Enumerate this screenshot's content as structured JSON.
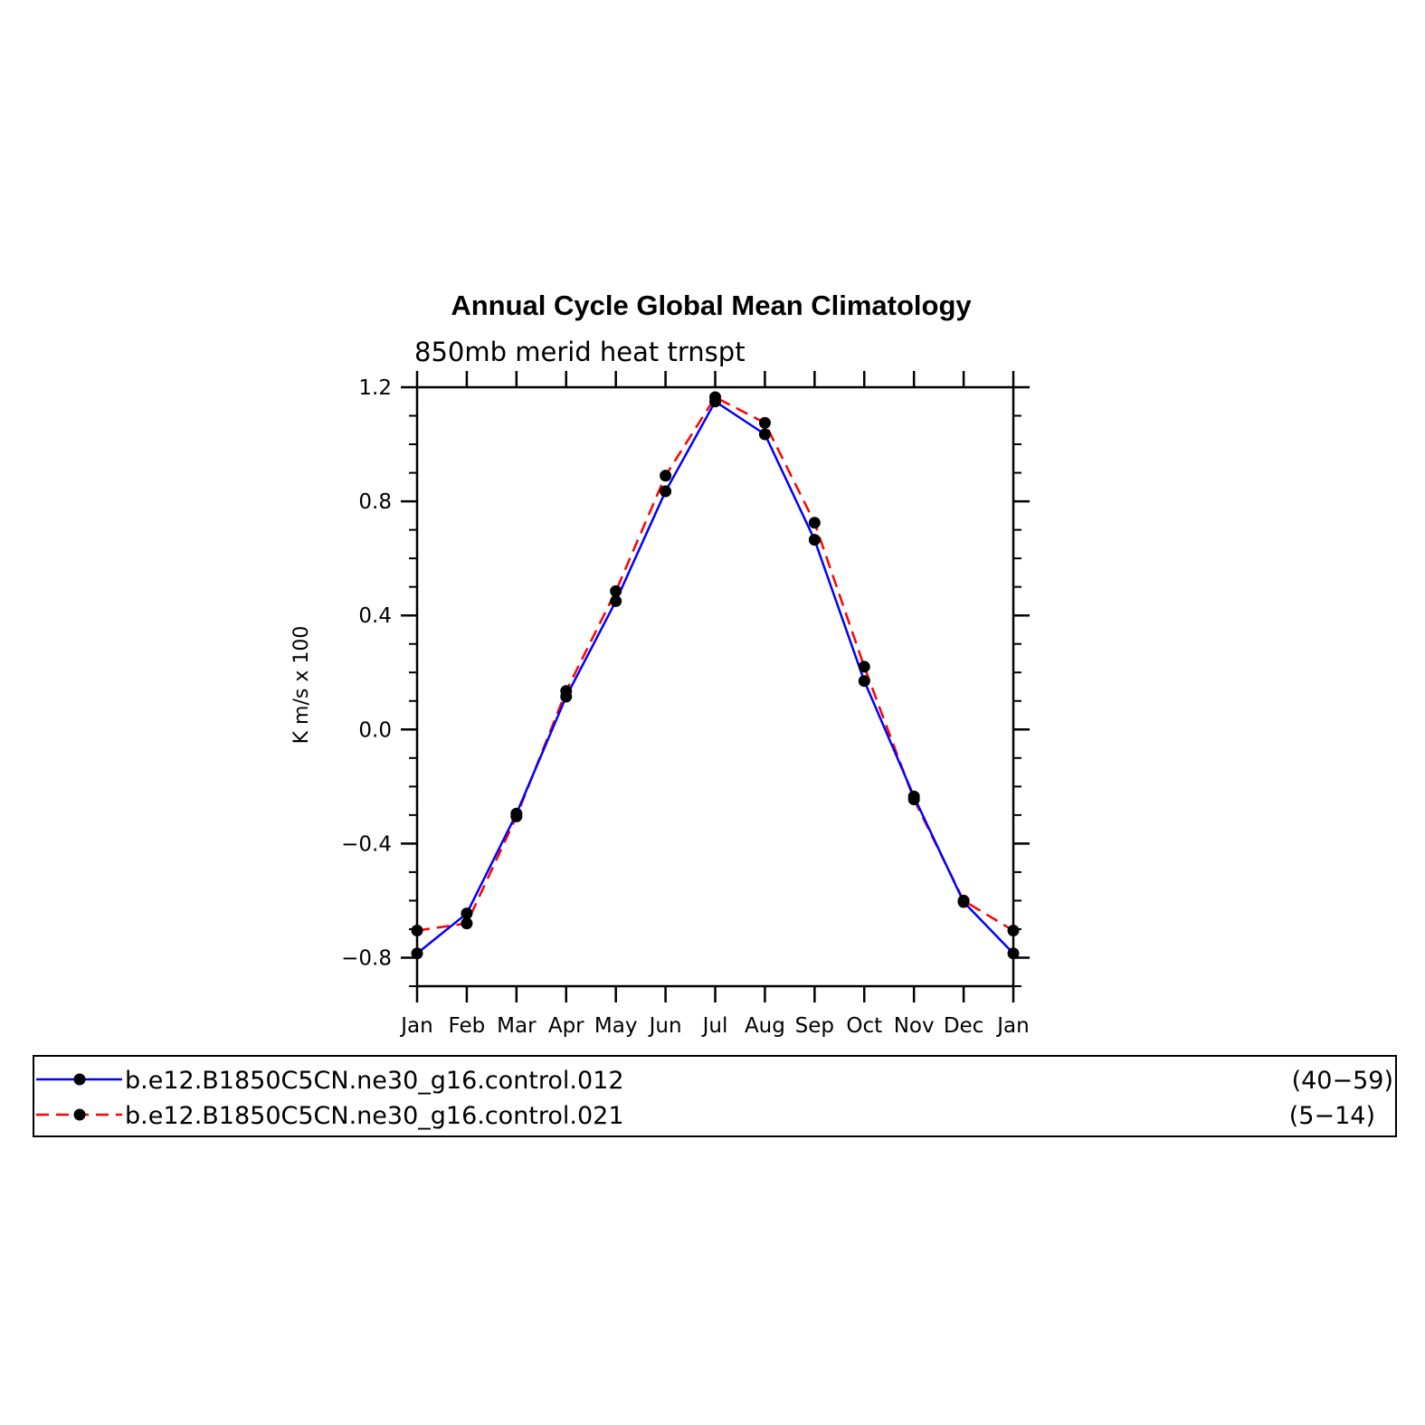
{
  "chart_data": {
    "type": "line",
    "title": "Annual Cycle Global Mean Climatology",
    "subtitle": "850mb merid heat trnspt",
    "ylabel": "K m/s x 100",
    "xlabel": "",
    "categories": [
      "Jan",
      "Feb",
      "Mar",
      "Apr",
      "May",
      "Jun",
      "Jul",
      "Aug",
      "Sep",
      "Oct",
      "Nov",
      "Dec",
      "Jan"
    ],
    "ylim": [
      -0.9,
      1.2
    ],
    "yticks": [
      1.2,
      0.8,
      0.4,
      0.0,
      -0.4,
      -0.8
    ],
    "ytick_labels": [
      "1.2",
      "0.8",
      "0.4",
      "0.0",
      "−0.4",
      "−0.8"
    ],
    "grid": false,
    "legend_position": "bottom",
    "series": [
      {
        "name": "b.e12.B1850C5CN.ne30_g16.control.012",
        "years": "(40−59)",
        "color": "#0000ff",
        "line_style": "solid",
        "values": [
          -0.785,
          -0.645,
          -0.295,
          0.115,
          0.45,
          0.835,
          1.15,
          1.035,
          0.665,
          0.17,
          -0.235,
          -0.605,
          -0.785
        ]
      },
      {
        "name": "b.e12.B1850C5CN.ne30_g16.control.021",
        "years": "(5−14)",
        "color": "#ff0000",
        "line_style": "dashed",
        "values": [
          -0.705,
          -0.68,
          -0.305,
          0.135,
          0.485,
          0.89,
          1.165,
          1.075,
          0.725,
          0.22,
          -0.245,
          -0.6,
          -0.705
        ]
      }
    ]
  }
}
